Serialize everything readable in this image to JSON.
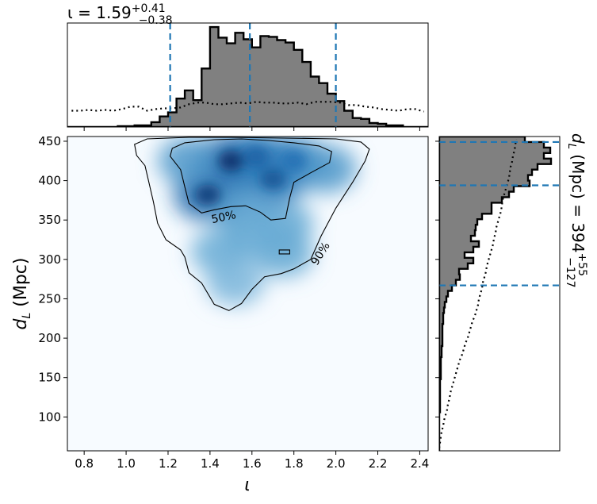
{
  "chart_data": [
    {
      "type": "heatmap",
      "xlabel": "ι",
      "ylabel": "d_L (Mpc)",
      "xlim": [
        0.72,
        2.44
      ],
      "ylim": [
        57,
        456
      ],
      "xticks": [
        "0.8",
        "1.0",
        "1.2",
        "1.4",
        "1.6",
        "1.8",
        "2.0",
        "2.2",
        "2.4"
      ],
      "xtick_values": [
        0.8,
        1.0,
        1.2,
        1.4,
        1.6,
        1.8,
        2.0,
        2.2,
        2.4
      ],
      "yticks": [
        "100",
        "150",
        "200",
        "250",
        "300",
        "350",
        "400",
        "450"
      ],
      "ytick_values": [
        100,
        150,
        200,
        250,
        300,
        350,
        400,
        450
      ],
      "colormap": "Blues",
      "blobs": [
        {
          "x": 1.5,
          "y": 425,
          "intensity": 1.0
        },
        {
          "x": 1.39,
          "y": 382,
          "intensity": 0.95
        },
        {
          "x": 1.7,
          "y": 402,
          "intensity": 0.85
        },
        {
          "x": 1.8,
          "y": 425,
          "intensity": 0.75
        },
        {
          "x": 1.62,
          "y": 430,
          "intensity": 0.8
        },
        {
          "x": 1.95,
          "y": 415,
          "intensity": 0.55
        },
        {
          "x": 1.3,
          "y": 425,
          "intensity": 0.55
        },
        {
          "x": 1.55,
          "y": 365,
          "intensity": 0.5
        },
        {
          "x": 1.75,
          "y": 345,
          "intensity": 0.4
        },
        {
          "x": 1.45,
          "y": 310,
          "intensity": 0.35
        },
        {
          "x": 1.75,
          "y": 307,
          "intensity": 0.4
        },
        {
          "x": 1.52,
          "y": 270,
          "intensity": 0.25
        },
        {
          "x": 1.6,
          "y": 330,
          "intensity": 0.35
        }
      ],
      "contours": [
        {
          "label": "50%",
          "points": [
            [
              1.22,
              441
            ],
            [
              1.28,
              448
            ],
            [
              1.42,
              452
            ],
            [
              1.55,
              453
            ],
            [
              1.68,
              451
            ],
            [
              1.8,
              448
            ],
            [
              1.92,
              444
            ],
            [
              1.98,
              437
            ],
            [
              1.97,
              423
            ],
            [
              1.88,
              410
            ],
            [
              1.8,
              398
            ],
            [
              1.78,
              378
            ],
            [
              1.76,
              352
            ],
            [
              1.69,
              350
            ],
            [
              1.64,
              360
            ],
            [
              1.57,
              368
            ],
            [
              1.5,
              367
            ],
            [
              1.42,
              363
            ],
            [
              1.36,
              359
            ],
            [
              1.3,
              371
            ],
            [
              1.28,
              392
            ],
            [
              1.26,
              414
            ],
            [
              1.21,
              431
            ],
            [
              1.22,
              441
            ]
          ]
        },
        {
          "label": "90%",
          "points": [
            [
              1.04,
              446
            ],
            [
              1.1,
              453
            ],
            [
              1.3,
              455
            ],
            [
              1.5,
              455
            ],
            [
              1.75,
              454
            ],
            [
              2.0,
              453
            ],
            [
              2.12,
              449
            ],
            [
              2.16,
              440
            ],
            [
              2.14,
              425
            ],
            [
              2.08,
              398
            ],
            [
              2.0,
              365
            ],
            [
              1.93,
              330
            ],
            [
              1.88,
              300
            ],
            [
              1.8,
              288
            ],
            [
              1.74,
              282
            ],
            [
              1.66,
              278
            ],
            [
              1.6,
              262
            ],
            [
              1.55,
              244
            ],
            [
              1.49,
              235
            ],
            [
              1.42,
              243
            ],
            [
              1.36,
              270
            ],
            [
              1.3,
              283
            ],
            [
              1.28,
              303
            ],
            [
              1.26,
              312
            ],
            [
              1.19,
              325
            ],
            [
              1.15,
              346
            ],
            [
              1.13,
              373
            ],
            [
              1.11,
              396
            ],
            [
              1.09,
              419
            ],
            [
              1.05,
              432
            ],
            [
              1.04,
              446
            ]
          ]
        },
        {
          "label": "",
          "points": [
            [
              1.73,
              312
            ],
            [
              1.78,
              312
            ],
            [
              1.78,
              307
            ],
            [
              1.73,
              307
            ],
            [
              1.73,
              312
            ]
          ]
        }
      ],
      "contour_labels": [
        "50%",
        "90%"
      ]
    },
    {
      "type": "bar",
      "title": "ι = 1.59+0.41−0.38",
      "title_main": "ι = 1.59",
      "title_sup": "+0.41",
      "title_sub": "−0.38",
      "median": 1.59,
      "lower": 1.21,
      "upper": 2.0,
      "bin_edges": [
        0.72,
        0.76,
        0.8,
        0.84,
        0.88,
        0.92,
        0.96,
        1.0,
        1.04,
        1.08,
        1.12,
        1.16,
        1.2,
        1.24,
        1.28,
        1.32,
        1.36,
        1.4,
        1.44,
        1.48,
        1.52,
        1.56,
        1.6,
        1.64,
        1.68,
        1.72,
        1.76,
        1.8,
        1.84,
        1.88,
        1.92,
        1.96,
        2.0,
        2.04,
        2.08,
        2.12,
        2.16,
        2.2,
        2.24,
        2.28,
        2.32,
        2.36,
        2.4,
        2.44
      ],
      "values": [
        0,
        0,
        0,
        0,
        0,
        0,
        1,
        1,
        2,
        2,
        6,
        13,
        18,
        35,
        45,
        33,
        72,
        123,
        110,
        103,
        116,
        108,
        98,
        112,
        111,
        107,
        104,
        95,
        80,
        62,
        54,
        41,
        32,
        20,
        11,
        10,
        5,
        4,
        2,
        2,
        0,
        0,
        0
      ],
      "prior": [
        20,
        20,
        21,
        20,
        21,
        20,
        22,
        25,
        25,
        20,
        22,
        23,
        23,
        24,
        28,
        30,
        30,
        28,
        28,
        29,
        30,
        29,
        31,
        30,
        30,
        29,
        29,
        30,
        28,
        31,
        31,
        31,
        30,
        27,
        27,
        25,
        24,
        22,
        21,
        20,
        22,
        22,
        19
      ]
    },
    {
      "type": "bar",
      "orientation": "horizontal",
      "title": "d_L (Mpc) = 394+55−127",
      "title_main": "d_L (Mpc) = 394",
      "title_sup": "+55",
      "title_sub": "−127",
      "median": 394,
      "lower": 267,
      "upper": 449,
      "bin_edges": [
        57,
        64,
        71,
        78,
        85,
        92,
        99,
        106,
        113,
        120,
        127,
        134,
        141,
        148,
        155,
        162,
        169,
        176,
        183,
        190,
        197,
        204,
        211,
        218,
        225,
        232,
        239,
        246,
        253,
        260,
        267,
        274,
        281,
        288,
        295,
        302,
        309,
        316,
        323,
        330,
        337,
        344,
        351,
        358,
        365,
        372,
        379,
        386,
        393,
        400,
        407,
        414,
        421,
        428,
        435,
        442,
        449,
        456
      ],
      "values": [
        0,
        0,
        0,
        0,
        0,
        0,
        0,
        1,
        1,
        1,
        1,
        1,
        1,
        2,
        2,
        2,
        2,
        3,
        3,
        4,
        4,
        4,
        4,
        5,
        5,
        6,
        7,
        9,
        11,
        16,
        21,
        26,
        25,
        36,
        43,
        32,
        43,
        50,
        40,
        45,
        46,
        48,
        54,
        66,
        66,
        79,
        88,
        94,
        114,
        112,
        117,
        124,
        141,
        132,
        140,
        132,
        108
      ],
      "prior": [
        0,
        1,
        2,
        3,
        5,
        6,
        8,
        10,
        11,
        13,
        14,
        16,
        18,
        20,
        22,
        24,
        26,
        29,
        31,
        33,
        36,
        38,
        40,
        42,
        45,
        47,
        49,
        50,
        52,
        54,
        55,
        57,
        59,
        60,
        62,
        64,
        66,
        68,
        69,
        71,
        72,
        74,
        76,
        78,
        79,
        80,
        82,
        84,
        86,
        88,
        89,
        90,
        92,
        93,
        95,
        96,
        97
      ]
    }
  ]
}
